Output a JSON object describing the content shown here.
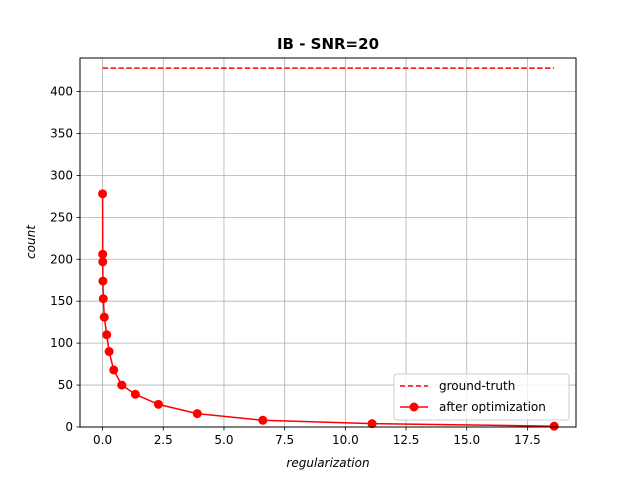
{
  "chart_data": {
    "type": "line",
    "title": "IB - SNR=20",
    "xlabel": "regularization",
    "ylabel": "count",
    "xlim": [
      -0.93,
      19.5
    ],
    "ylim": [
      0,
      440
    ],
    "xticks": [
      0.0,
      2.5,
      5.0,
      7.5,
      10.0,
      12.5,
      15.0,
      17.5
    ],
    "xtick_labels": [
      "0.0",
      "2.5",
      "5.0",
      "7.5",
      "10.0",
      "12.5",
      "15.0",
      "17.5"
    ],
    "yticks": [
      0,
      50,
      100,
      150,
      200,
      250,
      300,
      350,
      400
    ],
    "ytick_labels": [
      "0",
      "50",
      "100",
      "150",
      "200",
      "250",
      "300",
      "350",
      "400"
    ],
    "grid": true,
    "legend_position": "lower-right",
    "series": [
      {
        "name": "ground-truth",
        "style": "dashed",
        "color": "#ff0000",
        "x": [
          0.0,
          18.6
        ],
        "y": [
          428,
          428
        ]
      },
      {
        "name": "after optimization",
        "style": "line-marker",
        "color": "#ff0000",
        "x": [
          0.0,
          0.004,
          0.008,
          0.015,
          0.03,
          0.07,
          0.17,
          0.27,
          0.46,
          0.79,
          1.35,
          2.3,
          3.9,
          6.6,
          11.1,
          18.6
        ],
        "y": [
          278,
          206,
          197,
          174,
          153,
          131,
          110,
          90,
          68,
          50,
          39,
          27,
          16,
          8,
          4,
          1
        ]
      }
    ]
  }
}
